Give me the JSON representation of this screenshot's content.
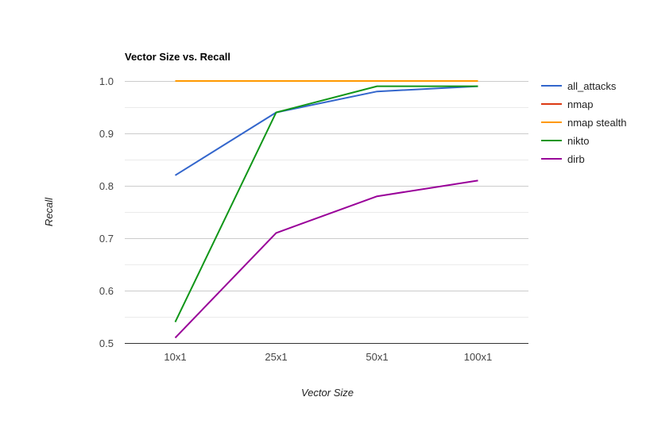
{
  "chart_data": {
    "type": "line",
    "title": "Vector Size vs. Recall",
    "xlabel": "Vector Size",
    "ylabel": "Recall",
    "categories": [
      "10x1",
      "25x1",
      "50x1",
      "100x1"
    ],
    "ylim": [
      0.5,
      1.0
    ],
    "yticks": [
      "0.5",
      "0.6",
      "0.7",
      "0.8",
      "0.9",
      "1.0"
    ],
    "grid": true,
    "minor_grid": true,
    "legend_position": "right",
    "series": [
      {
        "name": "all_attacks",
        "color": "#3366cc",
        "values": [
          0.82,
          0.94,
          0.98,
          0.99
        ]
      },
      {
        "name": "nmap",
        "color": "#dc3912",
        "values": [
          1.0,
          1.0,
          1.0,
          1.0
        ]
      },
      {
        "name": "nmap stealth",
        "color": "#ff9900",
        "values": [
          1.0,
          1.0,
          1.0,
          1.0
        ]
      },
      {
        "name": "nikto",
        "color": "#109618",
        "values": [
          0.54,
          0.94,
          0.99,
          0.99
        ]
      },
      {
        "name": "dirb",
        "color": "#990099",
        "values": [
          0.51,
          0.71,
          0.78,
          0.81
        ]
      }
    ]
  }
}
